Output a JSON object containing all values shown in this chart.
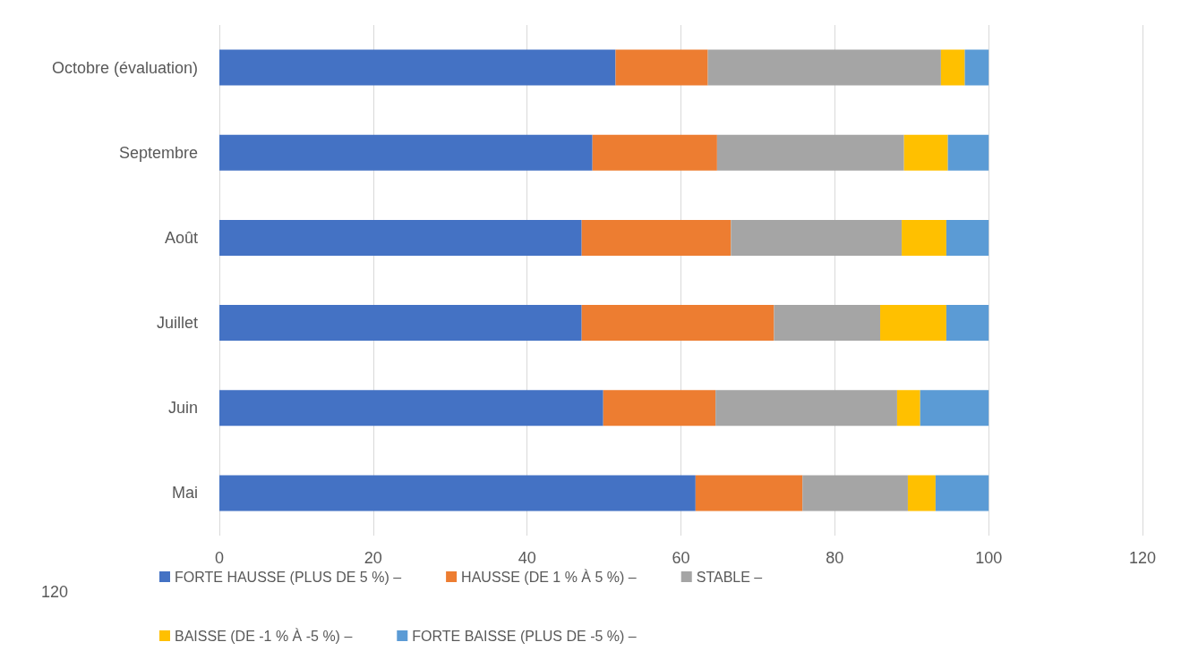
{
  "chart_data": {
    "type": "bar",
    "orientation": "horizontal",
    "stacked": true,
    "categories": [
      "Octobre (évaluation)",
      "Septembre",
      "Août",
      "Juillet",
      "Juin",
      "Mai"
    ],
    "series": [
      {
        "name": "FORTE HAUSSE (PLUS DE 5 %) –",
        "color": "#4472c4",
        "values": [
          51.5,
          48.5,
          47.1,
          47.1,
          49.9,
          61.9
        ]
      },
      {
        "name": "HAUSSE (DE 1 % À 5 %) –",
        "color": "#ed7d31",
        "values": [
          12.0,
          16.2,
          19.4,
          25.0,
          14.6,
          13.9
        ]
      },
      {
        "name": "STABLE –",
        "color": "#a5a5a5",
        "values": [
          30.3,
          24.3,
          22.2,
          13.8,
          23.6,
          13.7
        ]
      },
      {
        "name": "BAISSE (DE -1 % À -5 %) –",
        "color": "#ffc000",
        "values": [
          3.1,
          5.7,
          5.8,
          8.6,
          3.0,
          3.6
        ]
      },
      {
        "name": "FORTE BAISSE (PLUS DE -5 %) –",
        "color": "#5b9bd5",
        "values": [
          3.1,
          5.3,
          5.5,
          5.5,
          8.9,
          6.9
        ]
      }
    ],
    "xlim": [
      0,
      120
    ],
    "xticks": [
      0,
      20,
      40,
      60,
      80,
      100,
      120
    ],
    "annotations": [
      "120"
    ],
    "grid": "x",
    "legend": "bottom"
  }
}
